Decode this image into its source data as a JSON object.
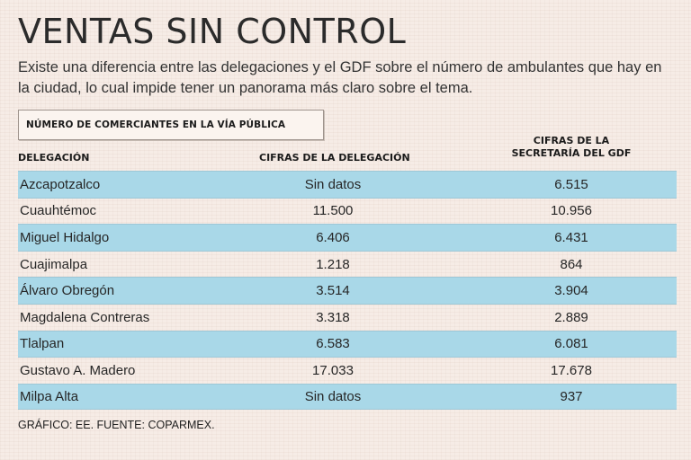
{
  "header": {
    "title": "VENTAS SIN CONTROL",
    "subtitle": "Existe una diferencia entre las delegaciones y el GDF sobre el número de ambulantes que hay en la ciudad, lo cual impide tener un panorama más claro sobre el tema."
  },
  "section_label": "NÚMERO DE COMERCIANTES EN LA VÍA PÚBLICA",
  "footer": "GRÁFICO: EE. FUENTE: COPARMEX.",
  "colors": {
    "row_shade": "#a9d8e8",
    "background": "#f6ece6"
  },
  "chart_data": {
    "type": "table",
    "title": "VENTAS SIN CONTROL",
    "columns": {
      "delegacion": "DELEGACIÓN",
      "cifras_delegacion": "CIFRAS DE LA DELEGACIÓN",
      "cifras_gdf_line1": "CIFRAS DE LA",
      "cifras_gdf_line2": "SECRETARÍA DEL GDF"
    },
    "rows": [
      {
        "delegacion": "Azcapotzalco",
        "cifras_delegacion": "Sin datos",
        "cifras_gdf": "6.515"
      },
      {
        "delegacion": "Cuauhtémoc",
        "cifras_delegacion": "11.500",
        "cifras_gdf": "10.956"
      },
      {
        "delegacion": "Miguel Hidalgo",
        "cifras_delegacion": "6.406",
        "cifras_gdf": "6.431"
      },
      {
        "delegacion": "Cuajimalpa",
        "cifras_delegacion": "1.218",
        "cifras_gdf": "864"
      },
      {
        "delegacion": "Álvaro Obregón",
        "cifras_delegacion": "3.514",
        "cifras_gdf": "3.904"
      },
      {
        "delegacion": "Magdalena Contreras",
        "cifras_delegacion": "3.318",
        "cifras_gdf": "2.889"
      },
      {
        "delegacion": "Tlalpan",
        "cifras_delegacion": "6.583",
        "cifras_gdf": "6.081"
      },
      {
        "delegacion": "Gustavo A. Madero",
        "cifras_delegacion": "17.033",
        "cifras_gdf": "17.678"
      },
      {
        "delegacion": "Milpa Alta",
        "cifras_delegacion": "Sin datos",
        "cifras_gdf": "937"
      }
    ]
  }
}
